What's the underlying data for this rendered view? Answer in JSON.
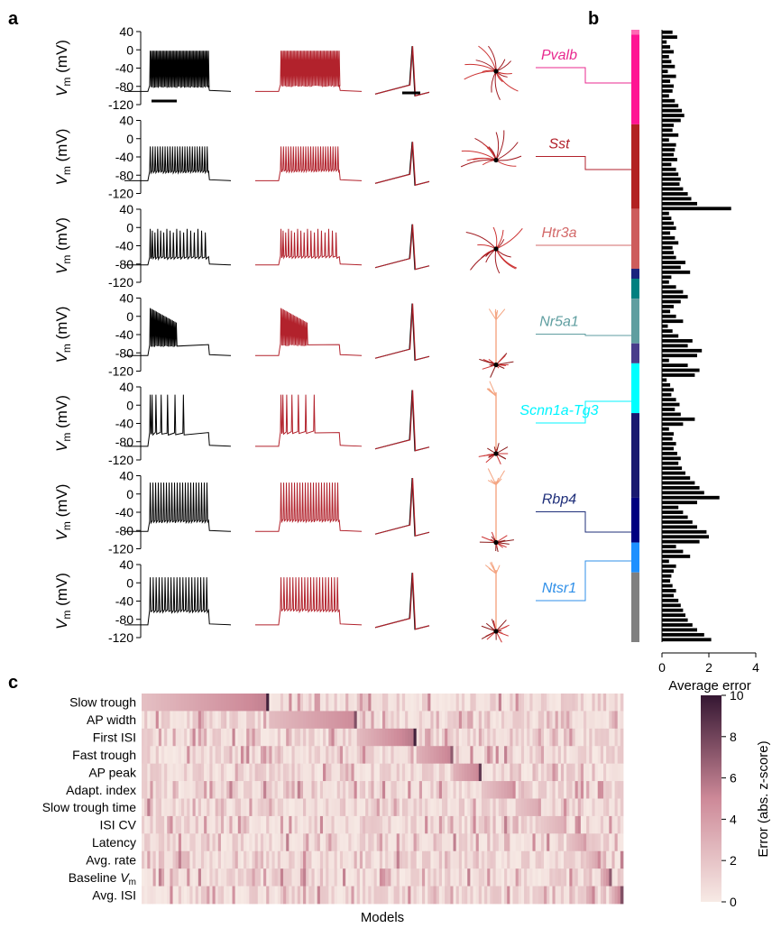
{
  "panel_letters": [
    "a",
    "b",
    "c"
  ],
  "panel_a": {
    "ylabel": "V_m (mV)",
    "ylabel_main": "V",
    "ylabel_sub": "m",
    "ylabel_unit": " (mV)",
    "yticks": [
      "40",
      "0",
      "-40",
      "-80",
      "-120"
    ],
    "rows": [
      {
        "gene": "Pvalb",
        "color": "#e8298f",
        "trace_model_color": "#b2222c",
        "morph_color": "#a01a20",
        "spikes": 48,
        "peak": -2,
        "trough": -78,
        "rest": -91,
        "firing": "tonic-fast"
      },
      {
        "gene": "Sst",
        "color": "#b2222c",
        "trace_model_color": "#b2222c",
        "morph_color": "#a01a20",
        "spikes": 24,
        "peak": -17,
        "trough": -70,
        "rest": -92,
        "firing": "regular"
      },
      {
        "gene": "Htr3a",
        "color": "#d36a6a",
        "trace_model_color": "#b2222c",
        "morph_color": "#a01a20",
        "spikes": 18,
        "peak": -3,
        "trough": -64,
        "rest": -82,
        "firing": "adapting"
      },
      {
        "gene": "Nr5a1",
        "color": "#5f9ea0",
        "trace_model_color": "#b2222c",
        "morph_color": "#f4a582",
        "spikes": 22,
        "peak": 18,
        "trough": -62,
        "rest": -86,
        "firing": "burst-decay"
      },
      {
        "gene": "Scnn1a-Tg3",
        "color": "#00f5ff",
        "trace_model_color": "#b2222c",
        "morph_color": "#f4a582",
        "spikes": 7,
        "peak": 23,
        "trough": -60,
        "rest": -90,
        "firing": "sparse"
      },
      {
        "gene": "Rbp4",
        "color": "#1f2f7a",
        "trace_model_color": "#b2222c",
        "morph_color": "#f4a582",
        "spikes": 22,
        "peak": 25,
        "trough": -58,
        "rest": -82,
        "firing": "regular"
      },
      {
        "gene": "Ntsr1",
        "color": "#2f8fe8",
        "trace_model_color": "#b2222c",
        "morph_color": "#f4a582",
        "spikes": 20,
        "peak": 12,
        "trough": -60,
        "rest": -92,
        "firing": "regular"
      }
    ],
    "trace_colors": {
      "experiment": "#000000",
      "model": "#b2222c"
    }
  },
  "panel_b": {
    "xlabel": "Average error",
    "xticks": [
      "0",
      "2",
      "4"
    ],
    "xlim": [
      0,
      4
    ],
    "color_strip": [
      {
        "color": "#ff69b4",
        "rows": 1
      },
      {
        "color": "#ff1493",
        "rows": 18
      },
      {
        "color": "#b22222",
        "rows": 17
      },
      {
        "color": "#cd5c5c",
        "rows": 12
      },
      {
        "color": "#1a237e",
        "rows": 2
      },
      {
        "color": "#008080",
        "rows": 4
      },
      {
        "color": "#5f9ea0",
        "rows": 9
      },
      {
        "color": "#483d8b",
        "rows": 4
      },
      {
        "color": "#00ffff",
        "rows": 10
      },
      {
        "color": "#191970",
        "rows": 17
      },
      {
        "color": "#000080",
        "rows": 9
      },
      {
        "color": "#1e90ff",
        "rows": 6
      },
      {
        "color": "#808080",
        "rows": 14
      }
    ]
  },
  "chart_data": [
    {
      "type": "bar",
      "orientation": "horizontal",
      "xlabel": "Average error",
      "xlim": [
        0,
        4
      ],
      "values": [
        0.45,
        0.65,
        0.2,
        0.35,
        0.5,
        0.3,
        0.4,
        0.55,
        0.25,
        0.6,
        0.35,
        0.5,
        0.45,
        0.3,
        0.55,
        0.7,
        0.85,
        0.95,
        0.8,
        0.5,
        0.45,
        0.7,
        0.3,
        0.6,
        0.55,
        0.5,
        0.65,
        0.4,
        0.6,
        0.7,
        0.8,
        0.75,
        0.9,
        1.1,
        1.25,
        1.5,
        2.95,
        0.3,
        0.4,
        0.5,
        0.6,
        0.35,
        0.55,
        0.7,
        0.45,
        0.5,
        0.6,
        1.0,
        0.8,
        1.2,
        0.4,
        0.3,
        0.6,
        0.9,
        1.1,
        0.8,
        0.5,
        0.35,
        0.6,
        0.9,
        0.25,
        0.45,
        0.7,
        1.3,
        1.1,
        1.7,
        1.5,
        0.3,
        1.1,
        1.6,
        1.4,
        0.2,
        0.35,
        0.5,
        0.4,
        0.6,
        0.75,
        0.55,
        0.8,
        1.4,
        0.9,
        0.3,
        0.5,
        0.45,
        0.6,
        0.5,
        0.65,
        0.8,
        0.7,
        0.85,
        1.0,
        1.2,
        1.4,
        1.6,
        1.8,
        2.45,
        1.5,
        0.7,
        0.9,
        1.1,
        1.3,
        1.5,
        1.9,
        2.0,
        1.6,
        0.6,
        0.9,
        1.2,
        0.3,
        0.6,
        0.5,
        0.4,
        0.35,
        0.45,
        0.6,
        0.5,
        0.7,
        0.8,
        0.9,
        1.0,
        1.1,
        1.3,
        1.5,
        1.8,
        2.1
      ],
      "colors_follow_strip": true
    },
    {
      "type": "heatmap",
      "xlabel": "Models",
      "row_labels": [
        "Slow trough",
        "AP width",
        "First ISI",
        "Fast trough",
        "AP peak",
        "Adapt. index",
        "Slow trough time",
        "ISI CV",
        "Latency",
        "Avg. rate",
        "Baseline V_m",
        "Avg. ISI"
      ],
      "row_labels_display": [
        "Slow trough",
        "AP width",
        "First ISI",
        "Fast trough",
        "AP peak",
        "Adapt. index",
        "Slow trough time",
        "ISI CV",
        "Latency",
        "Avg. rate",
        "Baseline ",
        "Avg. ISI"
      ],
      "n_models": 170,
      "colorbar": {
        "label": "Error (abs. z-score)",
        "ticks": [
          0,
          2,
          4,
          6,
          8,
          10
        ],
        "range": [
          0,
          10
        ]
      },
      "sorted_blocks": [
        {
          "row": 0,
          "start": 0,
          "end": 45,
          "from": 2.2,
          "to": 5.5,
          "peak": 9.5
        },
        {
          "row": 1,
          "start": 45,
          "end": 76,
          "from": 2.4,
          "to": 5.0,
          "peak": 7.5
        },
        {
          "row": 2,
          "start": 76,
          "end": 97,
          "from": 2.5,
          "to": 6.0,
          "peak": 9.5
        },
        {
          "row": 3,
          "start": 97,
          "end": 110,
          "from": 3.0,
          "to": 5.5,
          "peak": 7.0
        },
        {
          "row": 4,
          "start": 110,
          "end": 120,
          "from": 3.0,
          "to": 5.5,
          "peak": 8.5
        },
        {
          "row": 5,
          "start": 120,
          "end": 132,
          "from": 2.0,
          "to": 4.5,
          "peak": 5.0
        },
        {
          "row": 6,
          "start": 132,
          "end": 141,
          "from": 2.0,
          "to": 3.5,
          "peak": 4.0
        },
        {
          "row": 7,
          "start": 141,
          "end": 150,
          "from": 1.8,
          "to": 3.2,
          "peak": 3.5
        },
        {
          "row": 8,
          "start": 150,
          "end": 157,
          "from": 2.0,
          "to": 3.8,
          "peak": 4.0
        },
        {
          "row": 9,
          "start": 157,
          "end": 162,
          "from": 2.2,
          "to": 4.2,
          "peak": 5.0
        },
        {
          "row": 10,
          "start": 162,
          "end": 166,
          "from": 3.0,
          "to": 6.0,
          "peak": 7.0
        },
        {
          "row": 11,
          "start": 166,
          "end": 170,
          "from": 3.0,
          "to": 6.5,
          "peak": 7.5
        }
      ]
    }
  ]
}
